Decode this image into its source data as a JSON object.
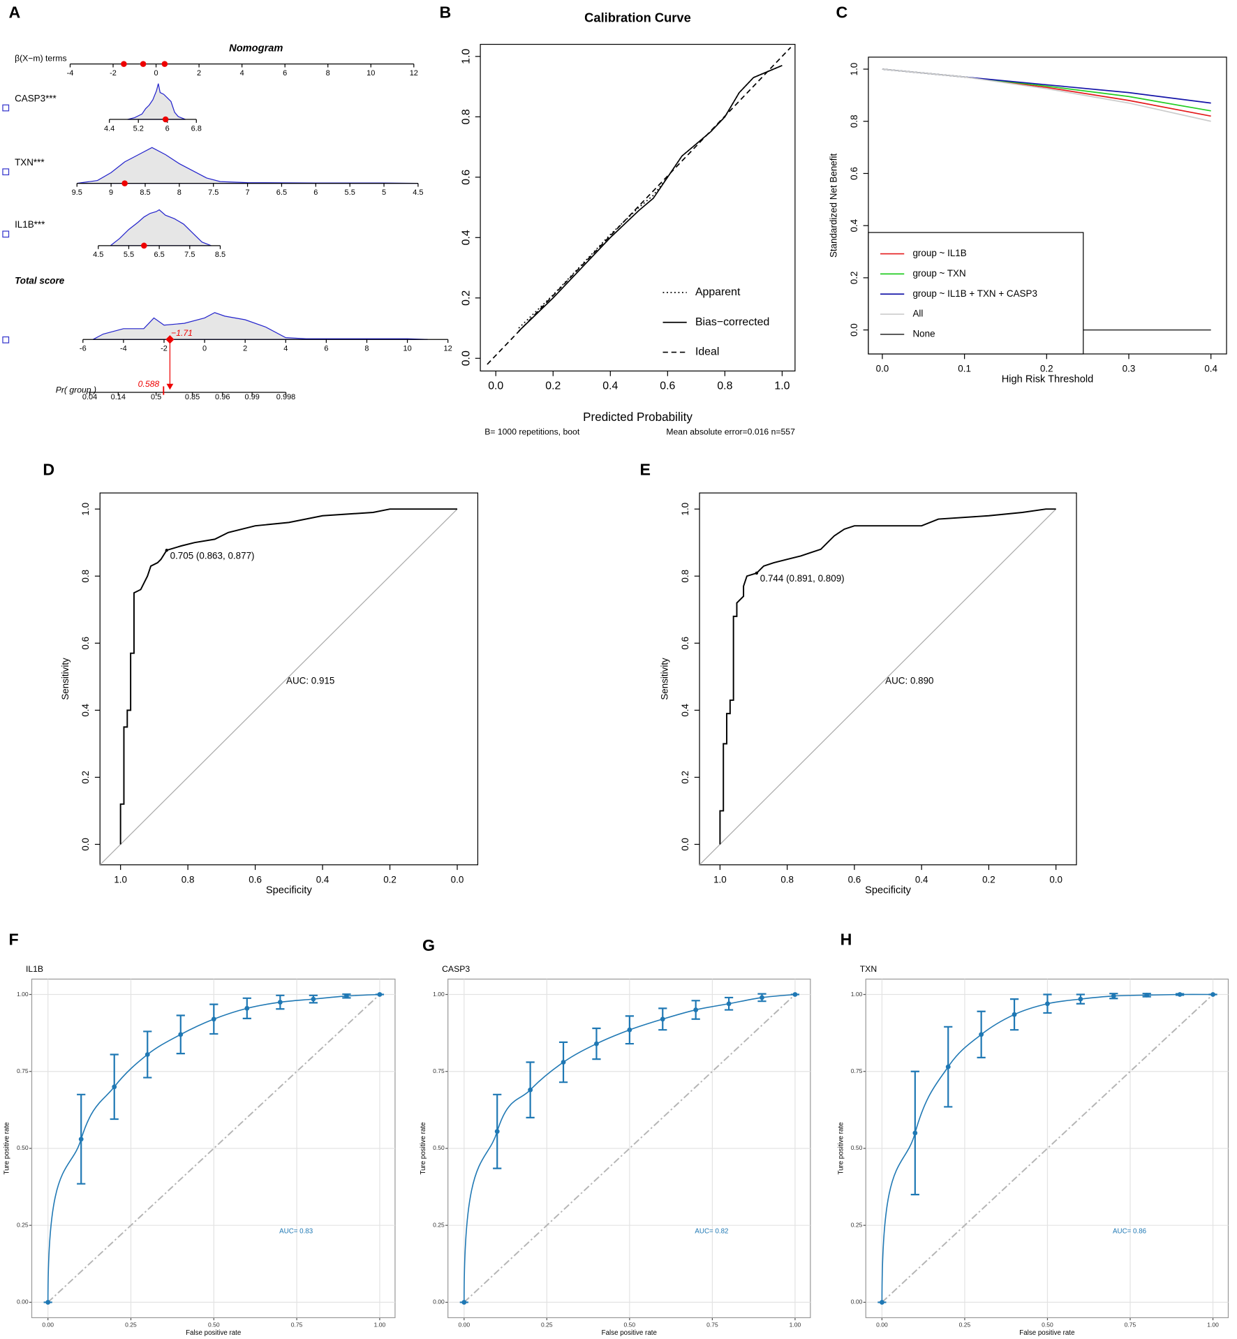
{
  "chart_data": [
    {
      "panel": "A",
      "type": "nomogram",
      "title": "Nomogram",
      "beta_axis": {
        "label": "β(X−m) terms",
        "ticks": [
          -4,
          -2,
          0,
          2,
          4,
          6,
          8,
          10,
          12
        ],
        "points": [
          -1.5,
          -0.6,
          0.4
        ]
      },
      "variables": [
        {
          "name": "CASP3***",
          "ticks": [
            4.4,
            5.2,
            6,
            6.8
          ],
          "point": 5.95,
          "density": {
            "x": [
              4.9,
              5.1,
              5.3,
              5.4,
              5.5,
              5.6,
              5.7,
              5.75,
              5.8,
              5.9,
              6.0,
              6.1,
              6.2,
              6.3,
              6.5
            ],
            "y": [
              0,
              0.05,
              0.15,
              0.3,
              0.4,
              0.55,
              0.8,
              1.0,
              0.75,
              0.7,
              0.6,
              0.5,
              0.2,
              0.08,
              0
            ]
          }
        },
        {
          "name": "TXN***",
          "ticks": [
            9.5,
            9,
            8.5,
            8,
            7.5,
            7,
            6.5,
            6,
            5.5,
            5,
            4.5
          ],
          "point": 8.8,
          "density": {
            "x": [
              9.5,
              9.2,
              9.0,
              8.8,
              8.6,
              8.4,
              8.2,
              8.0,
              7.8,
              7.6,
              7.4,
              7.0,
              6.0,
              5.0,
              4.5
            ],
            "y": [
              0,
              0.08,
              0.3,
              0.6,
              0.8,
              1.0,
              0.8,
              0.55,
              0.35,
              0.15,
              0.05,
              0.02,
              0.01,
              0.01,
              0
            ]
          }
        },
        {
          "name": "IL1B***",
          "ticks": [
            4.5,
            5.5,
            6.5,
            7.5,
            8.5
          ],
          "point": 6.0,
          "density": {
            "x": [
              4.9,
              5.2,
              5.5,
              5.8,
              6.0,
              6.2,
              6.4,
              6.5,
              6.7,
              7.0,
              7.3,
              7.6,
              7.9,
              8.2
            ],
            "y": [
              0,
              0.2,
              0.45,
              0.65,
              0.8,
              0.9,
              0.95,
              1.0,
              0.85,
              0.75,
              0.6,
              0.35,
              0.1,
              0
            ]
          }
        }
      ],
      "total": {
        "label": "Total score",
        "ticks": [
          -6,
          -4,
          -2,
          0,
          2,
          4,
          6,
          8,
          10,
          12
        ],
        "point": {
          "value": -1.71,
          "label": "−1.71"
        },
        "density": {
          "x": [
            -5.5,
            -5,
            -4,
            -3,
            -2.5,
            -2,
            -1,
            0,
            0.5,
            1,
            2,
            3,
            4,
            5,
            10,
            11
          ],
          "y": [
            0,
            0.15,
            0.3,
            0.3,
            0.6,
            0.4,
            0.45,
            0.6,
            0.75,
            0.65,
            0.55,
            0.35,
            0.05,
            0.02,
            0.02,
            0
          ]
        }
      },
      "probability": {
        "label": "Pr( group )",
        "ticks": [
          0.04,
          0.14,
          0.5,
          0.85,
          0.96,
          0.99,
          0.998
        ],
        "point": 0.588
      }
    },
    {
      "panel": "B",
      "type": "line",
      "title": "Calibration Curve",
      "xlabel": "Predicted Probability",
      "xlim": [
        -0.054,
        1.045
      ],
      "ylim": [
        -0.042,
        1.04
      ],
      "xticks": [
        {
          "value": 0,
          "label": "0.0"
        },
        0.2,
        0.4,
        0.6,
        0.8,
        {
          "value": 1,
          "label": "1.0"
        }
      ],
      "yticks": [
        {
          "value": 0,
          "label": "0.0"
        },
        0.2,
        0.4,
        0.6,
        0.8,
        {
          "value": 1,
          "label": "1.0"
        }
      ],
      "legend": "lower right",
      "series": [
        {
          "name": "Apparent",
          "color": "#000000",
          "dash": "dotted",
          "x": [
            0.08,
            0.2,
            0.3,
            0.4,
            0.5,
            0.55,
            0.6,
            0.65,
            0.7,
            0.75,
            0.8,
            0.85,
            0.9,
            0.95,
            1.0
          ],
          "values": [
            0.1,
            0.21,
            0.31,
            0.41,
            0.5,
            0.54,
            0.6,
            0.67,
            0.71,
            0.75,
            0.8,
            0.88,
            0.93,
            0.95,
            0.97
          ]
        },
        {
          "name": "Bias−corrected",
          "color": "#000000",
          "dash": "solid",
          "x": [
            0.08,
            0.2,
            0.3,
            0.4,
            0.5,
            0.55,
            0.6,
            0.65,
            0.7,
            0.75,
            0.8,
            0.85,
            0.9,
            0.95,
            1.0
          ],
          "values": [
            0.09,
            0.2,
            0.3,
            0.4,
            0.49,
            0.53,
            0.6,
            0.67,
            0.71,
            0.75,
            0.8,
            0.88,
            0.93,
            0.95,
            0.97
          ]
        },
        {
          "name": "Ideal",
          "color": "#000000",
          "dash": "dashed",
          "x": [
            -0.03,
            1.03
          ],
          "values": [
            -0.02,
            1.03
          ]
        }
      ],
      "notes": [
        "B= 1000 repetitions, boot",
        "Mean absolute error=0.016 n=557"
      ]
    },
    {
      "panel": "C",
      "type": "line",
      "xlabel": "High Risk Threshold",
      "ylabel": "Standardized Net Benefit",
      "xlim": [
        -0.017,
        0.419
      ],
      "ylim": [
        -0.092,
        1.046
      ],
      "xticks": [
        {
          "value": 0,
          "label": "0.0"
        },
        0.1,
        0.2,
        0.3,
        0.4
      ],
      "yticks": [
        {
          "value": 0,
          "label": "0.0"
        },
        0.2,
        0.4,
        0.6,
        0.8,
        {
          "value": 1,
          "label": "1.0"
        }
      ],
      "legend": "lower left",
      "legend_box": true,
      "series": [
        {
          "name": "group ~ IL1B",
          "color": "#e41a1c",
          "dash": "solid",
          "x": [
            0,
            0.1,
            0.2,
            0.3,
            0.4
          ],
          "values": [
            1,
            0.97,
            0.93,
            0.88,
            0.82
          ]
        },
        {
          "name": "group ~ TXN",
          "color": "#22cc22",
          "dash": "solid",
          "x": [
            0,
            0.1,
            0.2,
            0.3,
            0.4
          ],
          "values": [
            1,
            0.97,
            0.935,
            0.895,
            0.84
          ]
        },
        {
          "name": "group ~ IL1B + TXN + CASP3",
          "color": "#1414a8",
          "dash": "solid",
          "x": [
            0,
            0.1,
            0.2,
            0.3,
            0.4
          ],
          "values": [
            1,
            0.97,
            0.94,
            0.91,
            0.87
          ]
        },
        {
          "name": "All",
          "color": "#cccccc",
          "dash": "solid",
          "x": [
            0,
            0.1,
            0.2,
            0.3,
            0.4
          ],
          "values": [
            1,
            0.97,
            0.925,
            0.87,
            0.8
          ]
        },
        {
          "name": "None",
          "color": "#444444",
          "dash": "solid",
          "x": [
            0,
            0.4
          ],
          "values": [
            0,
            0
          ]
        }
      ]
    },
    {
      "panel": "D",
      "type": "roc",
      "xlabel": "Specificity",
      "ylabel": "Sensitivity",
      "xlim": [
        1.061,
        -0.061
      ],
      "ylim": [
        -0.061,
        1.048
      ],
      "xticks": [
        {
          "value": 1,
          "label": "1.0"
        },
        0.8,
        0.6,
        0.4,
        0.2,
        {
          "value": 0,
          "label": "0.0"
        }
      ],
      "yticks": [
        {
          "value": 0,
          "label": "0.0"
        },
        0.2,
        0.4,
        0.6,
        0.8,
        {
          "value": 1,
          "label": "1.0"
        }
      ],
      "x": [
        1,
        1,
        0.99,
        0.99,
        0.98,
        0.98,
        0.97,
        0.97,
        0.96,
        0.96,
        0.94,
        0.93,
        0.92,
        0.91,
        0.89,
        0.88,
        0.863,
        0.82,
        0.78,
        0.72,
        0.68,
        0.6,
        0.5,
        0.4,
        0.25,
        0.2,
        0
      ],
      "values": [
        0,
        0.12,
        0.12,
        0.35,
        0.35,
        0.4,
        0.4,
        0.57,
        0.57,
        0.75,
        0.76,
        0.78,
        0.8,
        0.83,
        0.84,
        0.85,
        0.877,
        0.89,
        0.9,
        0.91,
        0.93,
        0.95,
        0.96,
        0.98,
        0.99,
        1.0,
        1.0
      ],
      "best": {
        "label": "0.705 (0.863, 0.877)",
        "x": 0.863,
        "y": 0.877
      },
      "auc_label": "AUC: 0.915"
    },
    {
      "panel": "E",
      "type": "roc",
      "xlabel": "Specificity",
      "ylabel": "Sensitivity",
      "xlim": [
        1.061,
        -0.061
      ],
      "ylim": [
        -0.061,
        1.048
      ],
      "xticks": [
        {
          "value": 1,
          "label": "1.0"
        },
        0.8,
        0.6,
        0.4,
        0.2,
        {
          "value": 0,
          "label": "0.0"
        }
      ],
      "yticks": [
        {
          "value": 0,
          "label": "0.0"
        },
        0.2,
        0.4,
        0.6,
        0.8,
        {
          "value": 1,
          "label": "1.0"
        }
      ],
      "x": [
        1,
        1,
        0.99,
        0.99,
        0.98,
        0.98,
        0.97,
        0.97,
        0.96,
        0.96,
        0.95,
        0.95,
        0.93,
        0.93,
        0.92,
        0.891,
        0.87,
        0.84,
        0.8,
        0.76,
        0.73,
        0.7,
        0.68,
        0.66,
        0.63,
        0.6,
        0.4,
        0.35,
        0.2,
        0.1,
        0.03,
        0
      ],
      "values": [
        0,
        0.1,
        0.1,
        0.3,
        0.3,
        0.39,
        0.39,
        0.43,
        0.43,
        0.68,
        0.68,
        0.72,
        0.74,
        0.77,
        0.8,
        0.809,
        0.83,
        0.84,
        0.85,
        0.86,
        0.87,
        0.88,
        0.9,
        0.92,
        0.94,
        0.95,
        0.95,
        0.97,
        0.98,
        0.99,
        1.0,
        1.0
      ],
      "best": {
        "label": "0.744 (0.891, 0.809)",
        "x": 0.891,
        "y": 0.809
      },
      "auc_label": "AUC: 0.890"
    },
    {
      "panel": "F",
      "type": "roc_ci",
      "title": "IL1B",
      "xlabel": "False positive rate",
      "ylabel": "Ture positive rate",
      "color": "#1f78b4",
      "grid": true,
      "xlim": [
        -0.0488,
        1.0463
      ],
      "ylim": [
        -0.05,
        1.05
      ],
      "xticks": [
        {
          "value": 0,
          "label": "0.00"
        },
        0.25,
        {
          "value": 0.5,
          "label": "0.50"
        },
        0.75,
        {
          "value": 1,
          "label": "1.00"
        }
      ],
      "yticks": [
        {
          "value": 0,
          "label": "0.00"
        },
        0.25,
        {
          "value": 0.5,
          "label": "0.50"
        },
        0.75,
        {
          "value": 1,
          "label": "1.00"
        }
      ],
      "x": [
        0,
        0.1,
        0.2,
        0.3,
        0.4,
        0.5,
        0.6,
        0.7,
        0.8,
        0.9,
        1.0
      ],
      "values": [
        0,
        0.53,
        0.7,
        0.805,
        0.87,
        0.92,
        0.955,
        0.975,
        0.985,
        0.995,
        1.0
      ],
      "errors": [
        0,
        0.145,
        0.105,
        0.075,
        0.062,
        0.048,
        0.033,
        0.022,
        0.012,
        0.006,
        0
      ],
      "auc_label": "AUC= 0.83"
    },
    {
      "panel": "G",
      "type": "roc_ci",
      "title": "CASP3",
      "xlabel": "False positive rate",
      "ylabel": "Ture positive rate",
      "color": "#1f78b4",
      "grid": true,
      "xlim": [
        -0.0488,
        1.0463
      ],
      "ylim": [
        -0.05,
        1.05
      ],
      "xticks": [
        {
          "value": 0,
          "label": "0.00"
        },
        0.25,
        {
          "value": 0.5,
          "label": "0.50"
        },
        0.75,
        {
          "value": 1,
          "label": "1.00"
        }
      ],
      "yticks": [
        {
          "value": 0,
          "label": "0.00"
        },
        0.25,
        {
          "value": 0.5,
          "label": "0.50"
        },
        0.75,
        {
          "value": 1,
          "label": "1.00"
        }
      ],
      "x": [
        0,
        0.1,
        0.2,
        0.3,
        0.4,
        0.5,
        0.6,
        0.7,
        0.8,
        0.9,
        1.0
      ],
      "values": [
        0,
        0.555,
        0.69,
        0.78,
        0.84,
        0.885,
        0.92,
        0.95,
        0.97,
        0.99,
        1.0
      ],
      "errors": [
        0,
        0.12,
        0.09,
        0.065,
        0.05,
        0.045,
        0.035,
        0.03,
        0.02,
        0.012,
        0
      ],
      "auc_label": "AUC= 0.82"
    },
    {
      "panel": "H",
      "type": "roc_ci",
      "title": "TXN",
      "xlabel": "False positive rate",
      "ylabel": "Ture positive rate",
      "color": "#1f78b4",
      "grid": true,
      "xlim": [
        -0.0488,
        1.0463
      ],
      "ylim": [
        -0.05,
        1.05
      ],
      "xticks": [
        {
          "value": 0,
          "label": "0.00"
        },
        0.25,
        {
          "value": 0.5,
          "label": "0.50"
        },
        0.75,
        {
          "value": 1,
          "label": "1.00"
        }
      ],
      "yticks": [
        {
          "value": 0,
          "label": "0.00"
        },
        0.25,
        {
          "value": 0.5,
          "label": "0.50"
        },
        0.75,
        {
          "value": 1,
          "label": "1.00"
        }
      ],
      "x": [
        0,
        0.1,
        0.2,
        0.3,
        0.4,
        0.5,
        0.6,
        0.7,
        0.8,
        0.9,
        1.0
      ],
      "values": [
        0,
        0.55,
        0.765,
        0.87,
        0.935,
        0.97,
        0.985,
        0.995,
        0.998,
        1.0,
        1.0
      ],
      "errors": [
        0,
        0.2,
        0.13,
        0.075,
        0.05,
        0.03,
        0.015,
        0.008,
        0.005,
        0.002,
        0
      ],
      "auc_label": "AUC= 0.86"
    }
  ]
}
